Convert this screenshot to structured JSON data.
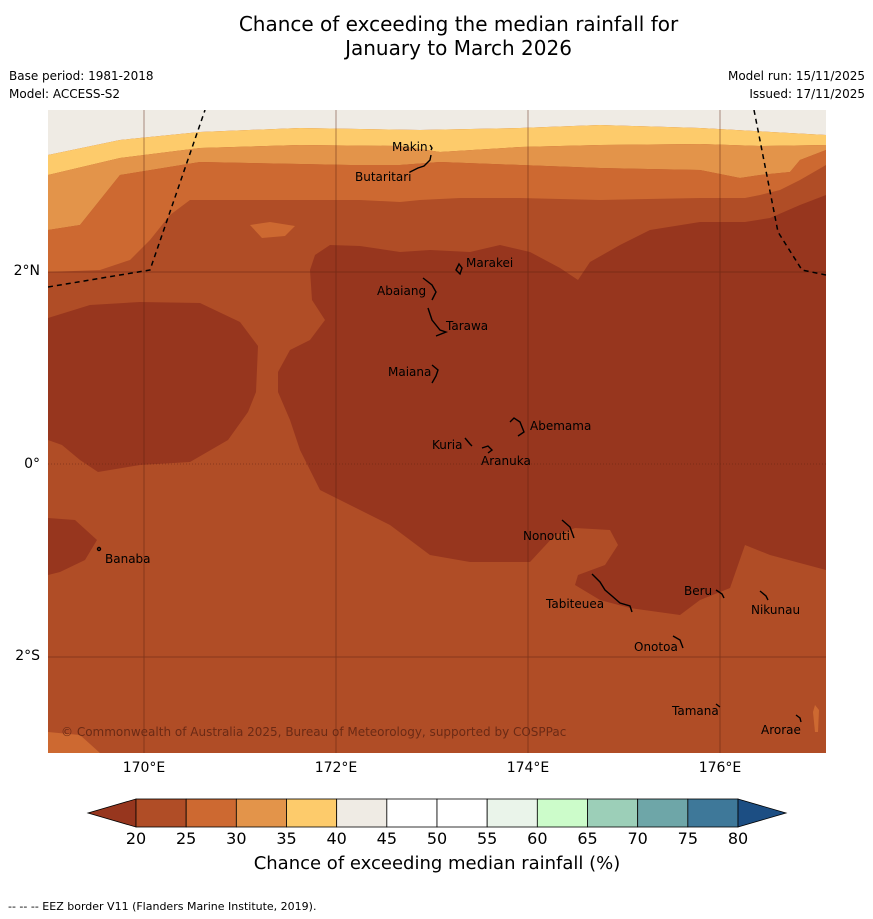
{
  "title_line1": "Chance of exceeding the median rainfall for",
  "title_line2": "January to March 2026",
  "base_period": "Base period: 1981-2018",
  "model": "Model: ACCESS-S2",
  "model_run": "Model run: 15/11/2025",
  "issued": "Issued: 17/11/2025",
  "lat_labels": [
    "2°N",
    "0°",
    "2°S"
  ],
  "lon_labels": [
    "170°E",
    "172°E",
    "174°E",
    "176°E"
  ],
  "places": [
    "Makin",
    "Butaritari",
    "Marakei",
    "Abaiang",
    "Tarawa",
    "Maiana",
    "Abemama",
    "Kuria",
    "Aranuka",
    "Banaba",
    "Nonouti",
    "Beru",
    "Tabiteuea",
    "Nikunau",
    "Onotoa",
    "Tamana",
    "Arorae"
  ],
  "copyright": "© Commonwealth of Australia 2025, Bureau of Meteorology, supported by COSPPac",
  "colorbar": {
    "ticks": [
      "20",
      "25",
      "30",
      "35",
      "40",
      "45",
      "50",
      "55",
      "60",
      "65",
      "70",
      "75",
      "80"
    ],
    "colors": [
      "#97361e",
      "#b04d26",
      "#cd6931",
      "#e3944a",
      "#fdcb6b",
      "#efebe4",
      "#ffffff",
      "#ffffff",
      "#eaf4ea",
      "#ccfcca",
      "#9ccfb8",
      "#6ea6a8",
      "#3e7899",
      "#1c4e83"
    ],
    "title": "Chance of exceeding median rainfall (%)"
  },
  "footer": "--  --  -- EEZ border V11 (Flanders Marine Institute, 2019)."
}
